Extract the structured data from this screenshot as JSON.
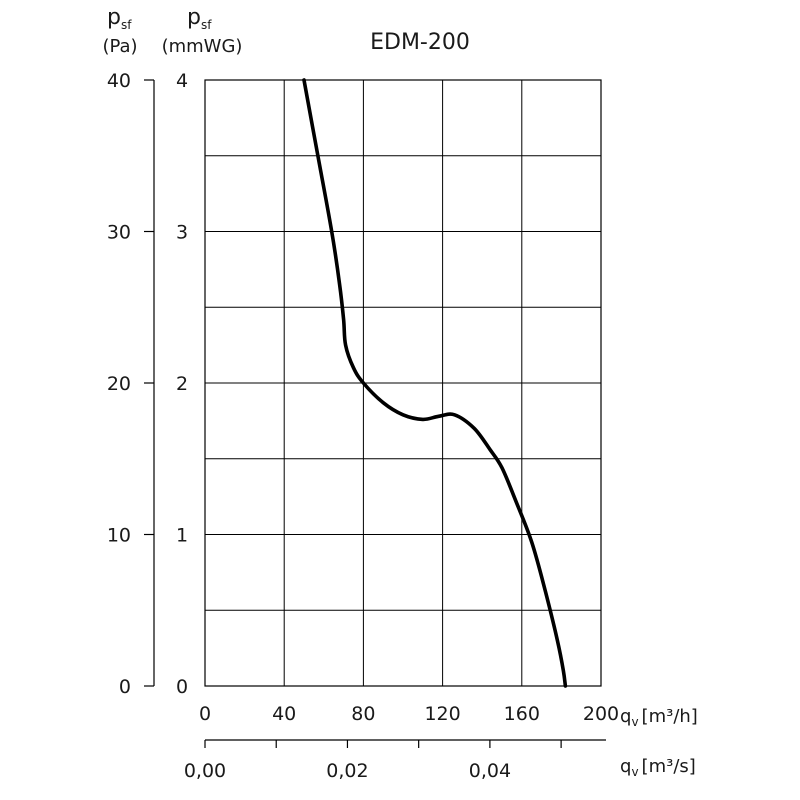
{
  "chart_data": {
    "type": "line",
    "title": "EDM-200",
    "y_axes": [
      {
        "symbol": "p",
        "subscript": "sf",
        "unit": "(Pa)",
        "ticks": [
          "0",
          "10",
          "20",
          "30",
          "40"
        ],
        "range": [
          0,
          40
        ]
      },
      {
        "symbol": "p",
        "subscript": "sf",
        "unit": "(mmWG)",
        "ticks": [
          "0",
          "1",
          "2",
          "3",
          "4"
        ],
        "range": [
          0,
          4
        ]
      }
    ],
    "x_axes": [
      {
        "symbol": "q",
        "subscript": "v",
        "unit": "[m³/h]",
        "ticks": [
          "0",
          "40",
          "80",
          "120",
          "160",
          "200"
        ],
        "range": [
          0,
          200
        ]
      },
      {
        "symbol": "q",
        "subscript": "v",
        "unit": "[m³/s]",
        "ticks": [
          "0,00",
          "0,02",
          "0,04"
        ],
        "range": [
          0,
          0.0556
        ]
      }
    ],
    "grid": true,
    "series": [
      {
        "x_unit": "m³/h",
        "y_unit": "Pa",
        "points": [
          [
            50,
            40
          ],
          [
            57,
            35
          ],
          [
            64,
            30
          ],
          [
            68,
            26.5
          ],
          [
            70,
            24.2
          ],
          [
            71,
            22.5
          ],
          [
            75,
            21.0
          ],
          [
            80,
            20.0
          ],
          [
            90,
            18.7
          ],
          [
            100,
            17.9
          ],
          [
            110,
            17.6
          ],
          [
            118,
            17.8
          ],
          [
            126,
            17.9
          ],
          [
            136,
            17.0
          ],
          [
            144,
            15.6
          ],
          [
            150,
            14.4
          ],
          [
            157,
            12.2
          ],
          [
            165,
            9.5
          ],
          [
            172,
            6.2
          ],
          [
            178,
            3.0
          ],
          [
            181,
            1.0
          ],
          [
            182,
            0
          ]
        ]
      }
    ]
  }
}
